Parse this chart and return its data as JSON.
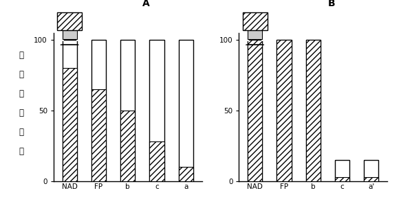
{
  "chart_A": {
    "title": "A",
    "categories": [
      "NAD",
      "FP",
      "b",
      "c",
      "a"
    ],
    "hatched_values": [
      80,
      65,
      50,
      28,
      10
    ],
    "outline_values": [
      100,
      100,
      100,
      100,
      100
    ]
  },
  "chart_B": {
    "title": "B",
    "categories": [
      "NAD",
      "FP",
      "b",
      "c",
      "a'"
    ],
    "hatched_values": [
      100,
      100,
      100,
      3,
      3
    ],
    "outline_values": [
      100,
      100,
      100,
      15,
      15
    ]
  },
  "ylabel_chars": [
    "还",
    "原",
    "态",
    "百",
    "分",
    "数"
  ],
  "ylim": [
    0,
    105
  ],
  "yticks": [
    0,
    50,
    100
  ],
  "bar_width": 0.5,
  "hatch_pattern": "////",
  "background_color": "white",
  "title_fontsize": 10,
  "label_fontsize": 7.5,
  "ylabel_fontsize": 8.5
}
